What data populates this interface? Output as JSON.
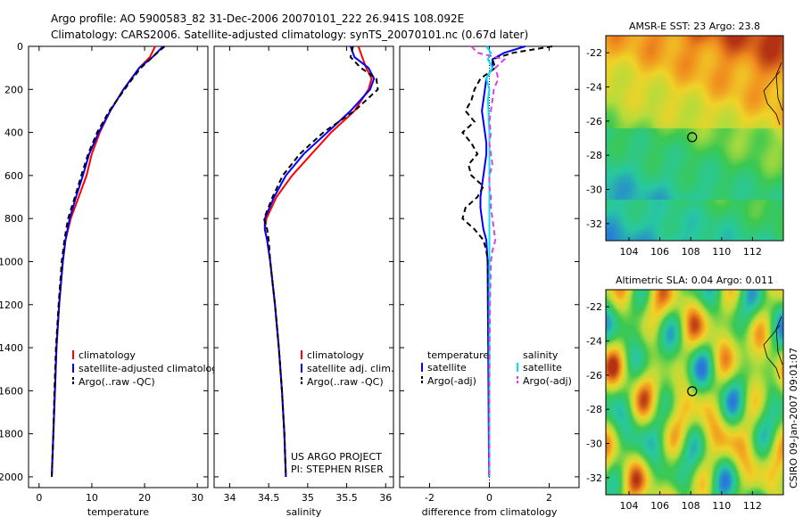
{
  "header": {
    "line1": "Argo profile: AO 5900583_82 31-Dec-2006 20070101_222 26.941S 108.092E",
    "line2": "Climatology: CARS2006. Satellite-adjusted climatology: synTS_20070101.nc (0.67d later)"
  },
  "side_label": "CSIRO 09-Jan-2007 09:01:07",
  "colors": {
    "climatology": "#ff0000",
    "satellite": "#0000ff",
    "argo": "#000000",
    "sal_satellite": "#00e5ff",
    "sal_argo": "#e040e0"
  },
  "chart_data": [
    {
      "type": "line",
      "xlabel": "temperature",
      "xlim": [
        -2,
        32
      ],
      "ylim": [
        0,
        2050
      ],
      "y_reversed": true,
      "xticks": [
        0,
        10,
        20,
        30
      ],
      "yticks": [
        0,
        200,
        400,
        600,
        800,
        1000,
        1200,
        1400,
        1600,
        1800,
        2000
      ],
      "y": [
        0,
        50,
        100,
        150,
        200,
        300,
        400,
        500,
        600,
        700,
        800,
        900,
        1000,
        1200,
        1400,
        1600,
        1800,
        2000
      ],
      "series": [
        {
          "name": "climatology",
          "color": "#ff0000",
          "values": [
            22,
            21,
            19,
            17.5,
            16,
            13.5,
            11.5,
            10,
            9,
            7.5,
            6,
            5,
            4.5,
            3.8,
            3.3,
            3,
            2.7,
            2.4
          ]
        },
        {
          "name": "satellite-adjusted climatology",
          "color": "#0000ff",
          "values": [
            23.5,
            21.5,
            19,
            17.5,
            16,
            13.5,
            11.3,
            9.5,
            8.3,
            7,
            5.8,
            5,
            4.5,
            3.8,
            3.3,
            3,
            2.7,
            2.4
          ]
        },
        {
          "name": "Argo(..raw -QC)",
          "color": "#000000",
          "dashed": true,
          "values": [
            23.8,
            21.5,
            19.3,
            17.7,
            16.2,
            13.3,
            11,
            9.3,
            8,
            6.8,
            5.5,
            4.8,
            4.3,
            3.7,
            3.2,
            2.9,
            2.7,
            2.4
          ]
        }
      ],
      "ylabels": [
        "0",
        "200",
        "400",
        "600",
        "800",
        "1000",
        "1200",
        "1400",
        "1600",
        "1800",
        "2000"
      ]
    },
    {
      "type": "line",
      "xlabel": "salinity",
      "xlim": [
        33.8,
        36.1
      ],
      "ylim": [
        0,
        2050
      ],
      "y_reversed": true,
      "xticks": [
        34,
        34.5,
        35,
        35.5,
        36
      ],
      "y": [
        0,
        50,
        100,
        150,
        200,
        300,
        400,
        500,
        600,
        700,
        800,
        850,
        900,
        1000,
        1200,
        1400,
        1600,
        1800,
        2000
      ],
      "series": [
        {
          "name": "climatology",
          "color": "#ff0000",
          "values": [
            35.65,
            35.7,
            35.75,
            35.82,
            35.78,
            35.6,
            35.3,
            35.05,
            34.8,
            34.6,
            34.47,
            34.45,
            34.48,
            34.52,
            34.58,
            34.63,
            34.67,
            34.7,
            34.72
          ]
        },
        {
          "name": "satellite adj. clim.",
          "color": "#0000ff",
          "values": [
            35.55,
            35.6,
            35.78,
            35.85,
            35.8,
            35.55,
            35.25,
            34.95,
            34.72,
            34.57,
            34.45,
            34.45,
            34.48,
            34.52,
            34.58,
            34.63,
            34.67,
            34.7,
            34.72
          ]
        },
        {
          "name": "Argo(..raw -QC)",
          "color": "#000000",
          "dashed": true,
          "values": [
            35.58,
            35.55,
            35.68,
            35.88,
            35.9,
            35.6,
            35.2,
            34.9,
            34.68,
            34.55,
            34.44,
            34.48,
            34.5,
            34.52,
            34.58,
            34.63,
            34.67,
            34.7,
            34.72
          ]
        }
      ],
      "annotation": [
        "US ARGO PROJECT",
        "PI: STEPHEN RISER"
      ]
    },
    {
      "type": "line",
      "xlabel": "difference from climatology",
      "xlim": [
        -3,
        3
      ],
      "ylim": [
        0,
        2050
      ],
      "y_reversed": true,
      "xticks": [
        -2,
        0,
        2
      ],
      "y": [
        0,
        30,
        60,
        100,
        150,
        200,
        250,
        300,
        350,
        400,
        450,
        500,
        550,
        600,
        650,
        700,
        750,
        800,
        850,
        900,
        950,
        1000,
        1200,
        1400,
        1600,
        1800,
        2000
      ],
      "legend_titles": [
        "temperature",
        "salinity"
      ],
      "series": [
        {
          "name": "satellite",
          "group": "temperature",
          "color": "#0000ff",
          "values": [
            1.2,
            0.5,
            0.1,
            0.1,
            -0.1,
            -0.15,
            -0.2,
            -0.25,
            -0.2,
            -0.15,
            -0.1,
            -0.1,
            -0.15,
            -0.2,
            -0.25,
            -0.3,
            -0.3,
            -0.25,
            -0.2,
            -0.1,
            -0.08,
            -0.06,
            -0.05,
            -0.04,
            -0.03,
            -0.02,
            -0.01
          ]
        },
        {
          "name": "Argo(-adj)",
          "group": "temperature",
          "color": "#000000",
          "dashed": true,
          "values": [
            2.1,
            0.8,
            0.1,
            0.2,
            -0.3,
            -0.5,
            -0.6,
            -0.8,
            -0.5,
            -0.9,
            -0.6,
            -0.4,
            -0.7,
            -0.6,
            -0.2,
            -0.4,
            -0.8,
            -0.9,
            -0.5,
            -0.2,
            -0.1,
            -0.05,
            -0.04,
            -0.03,
            -0.02,
            -0.01,
            0
          ]
        },
        {
          "name": "satellite",
          "group": "salinity",
          "color": "#00e5ff",
          "values": [
            -0.1,
            0.05,
            -0.05,
            0.1,
            -0.1,
            0,
            -0.05,
            -0.03,
            -0.02,
            0,
            0,
            0,
            0,
            0,
            0,
            0,
            0,
            0,
            0,
            0,
            0,
            0,
            0,
            0,
            0,
            0,
            0
          ]
        },
        {
          "name": "Argo(-adj)",
          "group": "salinity",
          "color": "#e040e0",
          "dashed": true,
          "values": [
            -0.6,
            -0.4,
            0.5,
            0.2,
            0.3,
            0.15,
            0.1,
            0.05,
            0,
            0.05,
            0,
            0.05,
            0.1,
            0,
            0,
            0.05,
            0.05,
            0.1,
            0.15,
            0.2,
            0.1,
            0.05,
            0.02,
            0.01,
            0,
            0,
            0
          ]
        }
      ]
    },
    {
      "type": "heatmap",
      "title": "AMSR-E SST: 23 Argo: 23.8",
      "xlim": [
        102.5,
        114
      ],
      "ylim": [
        -33,
        -21
      ],
      "xticks": [
        104,
        106,
        108,
        110,
        112
      ],
      "yticks": [
        -22,
        -24,
        -26,
        -28,
        -30,
        -32
      ],
      "marker": {
        "lon": 108.092,
        "lat": -26.941
      }
    },
    {
      "type": "heatmap",
      "title": "Altimetric SLA: 0.04 Argo: 0.011",
      "xlim": [
        102.5,
        114
      ],
      "ylim": [
        -33,
        -21
      ],
      "xticks": [
        104,
        106,
        108,
        110,
        112
      ],
      "yticks": [
        -22,
        -24,
        -26,
        -28,
        -30,
        -32
      ],
      "marker": {
        "lon": 108.092,
        "lat": -26.941
      }
    }
  ]
}
